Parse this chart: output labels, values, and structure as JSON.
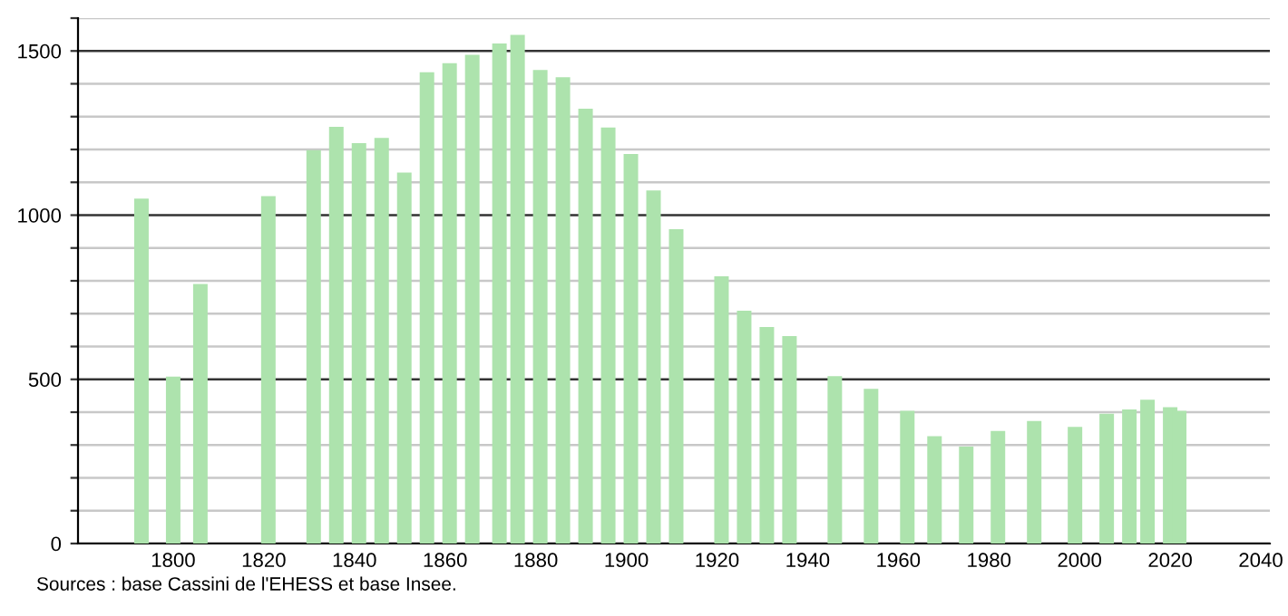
{
  "chart_data": {
    "type": "bar",
    "x": [
      1793,
      1800,
      1806,
      1821,
      1831,
      1836,
      1841,
      1846,
      1851,
      1856,
      1861,
      1866,
      1872,
      1876,
      1881,
      1886,
      1891,
      1896,
      1901,
      1906,
      1911,
      1921,
      1926,
      1931,
      1936,
      1946,
      1954,
      1962,
      1968,
      1975,
      1982,
      1990,
      1999,
      2006,
      2007,
      2008,
      2009,
      2010,
      2011,
      2015,
      2020,
      2022
    ],
    "values": [
      1050,
      508,
      790,
      1058,
      1198,
      1269,
      1219,
      1235,
      1130,
      1435,
      1463,
      1488,
      1523,
      1549,
      1442,
      1420,
      1324,
      1267,
      1186,
      1075,
      957,
      814,
      709,
      659,
      632,
      510,
      471,
      404,
      327,
      295,
      343,
      373,
      355,
      395,
      null,
      null,
      null,
      null,
      408,
      438,
      415,
      404
    ],
    "color": "#ade3ad",
    "xlim": [
      1779,
      2042
    ],
    "xticks": [
      1800,
      1820,
      1840,
      1860,
      1880,
      1900,
      1920,
      1940,
      1960,
      1980,
      2000,
      2020,
      2040
    ],
    "ylim": [
      0,
      1600
    ],
    "yticks": [
      0,
      {
        "value": 100,
        "label": null
      },
      {
        "value": 200,
        "label": null
      },
      {
        "value": 300,
        "label": null
      },
      {
        "value": 400,
        "label": null
      },
      500,
      {
        "value": 600,
        "label": null
      },
      {
        "value": 700,
        "label": null
      },
      {
        "value": 800,
        "label": null
      },
      {
        "value": 900,
        "label": null
      },
      1000,
      {
        "value": 1100,
        "label": null
      },
      {
        "value": 1200,
        "label": null
      },
      {
        "value": 1300,
        "label": null
      },
      {
        "value": 1400,
        "label": null
      },
      1500,
      {
        "value": 1600,
        "label": null
      }
    ],
    "grid": "y",
    "annotations": [
      "Sources : base Cassini de l'EHESS et base Insee."
    ]
  }
}
